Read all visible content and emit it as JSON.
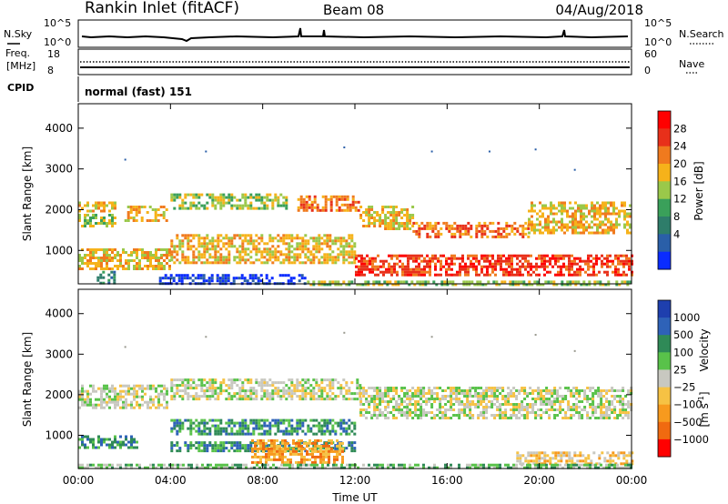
{
  "header": {
    "station": "Rankin Inlet (fitACF)",
    "beam": "Beam 08",
    "date": "04/Aug/2018"
  },
  "top_panels": {
    "nsky_label": "N.Sky",
    "nsky_ticks": [
      "10^5",
      "10^0"
    ],
    "nsearch_label": "N.Search",
    "nsearch_ticks": [
      "10^5",
      "10^0"
    ],
    "freq_label": "Freq.",
    "freq_unit": "[MHz]",
    "freq_ticks": [
      "18",
      "8"
    ],
    "nave_label": "Nave",
    "nave_ticks": [
      "60",
      "0"
    ],
    "cpid_label": "CPID",
    "cpid_value": "normal (fast) 151"
  },
  "chart_data": [
    {
      "type": "heatmap",
      "name": "power",
      "ylabel": "Slant Range [km]",
      "yticks": [
        1000,
        2000,
        3000,
        4000
      ],
      "ylim": [
        180,
        4600
      ],
      "xlim": [
        0,
        24
      ],
      "xticks": [
        0,
        4,
        8,
        12,
        16,
        20,
        24
      ],
      "colorbar": {
        "label": "Power [dB]",
        "ticks": [
          "28",
          "24",
          "20",
          "16",
          "12",
          "8",
          "4"
        ],
        "colors": [
          "#ff0000",
          "#e8301a",
          "#f07a1e",
          "#f6b21a",
          "#9ac84a",
          "#3aa05a",
          "#2e7d6a",
          "#2a5fa8",
          "#0a2cff"
        ]
      },
      "bands": [
        {
          "x0": 0.0,
          "x1": 1.6,
          "y0": 1950,
          "y1": 2200,
          "level": 3
        },
        {
          "x0": 0.0,
          "x1": 1.6,
          "y0": 1600,
          "y1": 1900,
          "level": 4
        },
        {
          "x0": 2.0,
          "x1": 3.8,
          "y0": 1700,
          "y1": 2100,
          "level": 3
        },
        {
          "x0": 4.0,
          "x1": 9.0,
          "y0": 2050,
          "y1": 2400,
          "level": 4
        },
        {
          "x0": 9.5,
          "x1": 12.2,
          "y0": 2000,
          "y1": 2350,
          "level": 2
        },
        {
          "x0": 12.2,
          "x1": 14.5,
          "y0": 1500,
          "y1": 2100,
          "level": 3
        },
        {
          "x0": 14.5,
          "x1": 19.5,
          "y0": 1300,
          "y1": 1700,
          "level": 2
        },
        {
          "x0": 19.5,
          "x1": 24.0,
          "y0": 1400,
          "y1": 2200,
          "level": 3
        },
        {
          "x0": 0.0,
          "x1": 4.0,
          "y0": 550,
          "y1": 1050,
          "level": 3
        },
        {
          "x0": 4.0,
          "x1": 12.0,
          "y0": 700,
          "y1": 1400,
          "level": 3
        },
        {
          "x0": 12.0,
          "x1": 24.0,
          "y0": 400,
          "y1": 900,
          "level": 1
        },
        {
          "x0": 0.8,
          "x1": 1.6,
          "y0": 200,
          "y1": 500,
          "level": 6
        },
        {
          "x0": 3.5,
          "x1": 9.8,
          "y0": 180,
          "y1": 420,
          "level": 8
        },
        {
          "x0": 9.8,
          "x1": 24.0,
          "y0": 180,
          "y1": 260,
          "level": 4
        }
      ],
      "points": [
        {
          "x": 2.0,
          "y": 3250
        },
        {
          "x": 5.5,
          "y": 3450
        },
        {
          "x": 11.5,
          "y": 3550
        },
        {
          "x": 15.3,
          "y": 3450
        },
        {
          "x": 17.8,
          "y": 3450
        },
        {
          "x": 19.8,
          "y": 3500
        },
        {
          "x": 21.5,
          "y": 3000
        }
      ]
    },
    {
      "type": "heatmap",
      "name": "velocity",
      "ylabel": "Slant Range [km]",
      "yticks": [
        1000,
        2000,
        3000,
        4000
      ],
      "ylim": [
        180,
        4600
      ],
      "xlim": [
        0,
        24
      ],
      "xticks": [
        0,
        4,
        8,
        12,
        16,
        20,
        24
      ],
      "xticklabels": [
        "00:00",
        "04:00",
        "08:00",
        "12:00",
        "16:00",
        "20:00",
        "00:00"
      ],
      "xlabel": "Time UT",
      "colorbar": {
        "label": "Velocity",
        "unit_base": "[m s",
        "unit_exp": "-1",
        "unit_close": "]",
        "ticks": [
          "1000",
          "500",
          "100",
          "25",
          "−25",
          "−100",
          "−500",
          "−1000"
        ],
        "colors": [
          "#1e3fae",
          "#2e62b8",
          "#2f8a57",
          "#59c24a",
          "#c8c8c0",
          "#f6c244",
          "#f79a1e",
          "#f06a10",
          "#ff0000"
        ]
      },
      "bands": [
        {
          "x0": 0.0,
          "x1": 3.8,
          "y0": 1700,
          "y1": 2250,
          "level": 4
        },
        {
          "x0": 4.0,
          "x1": 12.2,
          "y0": 1900,
          "y1": 2400,
          "level": 4
        },
        {
          "x0": 12.2,
          "x1": 24.0,
          "y0": 1400,
          "y1": 2200,
          "level": 4
        },
        {
          "x0": 0.0,
          "x1": 2.5,
          "y0": 700,
          "y1": 1000,
          "level": 2
        },
        {
          "x0": 4.0,
          "x1": 12.0,
          "y0": 1000,
          "y1": 1400,
          "level": 2
        },
        {
          "x0": 4.0,
          "x1": 12.0,
          "y0": 600,
          "y1": 850,
          "level": 2
        },
        {
          "x0": 7.5,
          "x1": 11.5,
          "y0": 300,
          "y1": 900,
          "level": 6
        },
        {
          "x0": 19.0,
          "x1": 24.0,
          "y0": 300,
          "y1": 600,
          "level": 5
        },
        {
          "x0": 0.0,
          "x1": 24.0,
          "y0": 180,
          "y1": 300,
          "level": 3
        }
      ],
      "points": [
        {
          "x": 2.0,
          "y": 3200
        },
        {
          "x": 5.5,
          "y": 3450
        },
        {
          "x": 11.5,
          "y": 3550
        },
        {
          "x": 15.3,
          "y": 3450
        },
        {
          "x": 19.8,
          "y": 3500
        },
        {
          "x": 21.5,
          "y": 3100
        }
      ]
    }
  ]
}
